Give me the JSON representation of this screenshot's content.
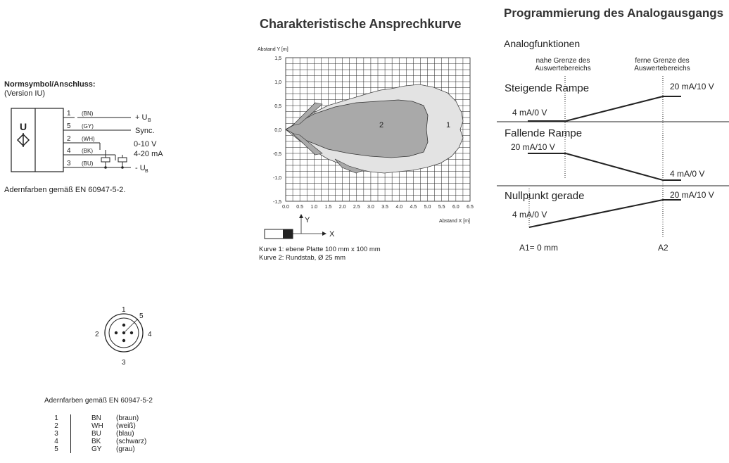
{
  "left": {
    "symbol_title": "Normsymbol/Anschluss:",
    "symbol_version": "(Version IU)",
    "symbol_letter": "U",
    "wires": [
      {
        "num": "1",
        "code": "(BN)",
        "signal": "+ U",
        "sub": "B"
      },
      {
        "num": "5",
        "code": "(GY)",
        "signal": "Sync.",
        "sub": ""
      },
      {
        "num": "2",
        "code": "(WH)",
        "signal": "0-10 V",
        "sub": ""
      },
      {
        "num": "4",
        "code": "(BK)",
        "signal": "4-20 mA",
        "sub": ""
      },
      {
        "num": "3",
        "code": "(BU)",
        "signal": "- U",
        "sub": "B"
      }
    ],
    "colors_note": "Adernfarben gemäß EN 60947-5-2.",
    "connector_pins": [
      "1",
      "5",
      "4",
      "3",
      "2"
    ],
    "pin_table_title": "Adernfarben gemäß EN 60947-5-2",
    "pin_table": [
      {
        "pin": "1",
        "code": "BN",
        "name": "(braun)"
      },
      {
        "pin": "2",
        "code": "WH",
        "name": "(weiß)"
      },
      {
        "pin": "3",
        "code": "BU",
        "name": "(blau)"
      },
      {
        "pin": "4",
        "code": "BK",
        "name": "(schwarz)"
      },
      {
        "pin": "5",
        "code": "GY",
        "name": "(grau)"
      }
    ]
  },
  "response": {
    "title": "Charakteristische Ansprechkurve",
    "y_label": "Abstand Y [m]",
    "x_label": "Abstand X [m]",
    "y_ticks": [
      "1,5",
      "1,0",
      "0,5",
      "0,0",
      "-0,5",
      "-1,0",
      "-1,5"
    ],
    "x_ticks": [
      "0.0",
      "0.5",
      "1.0",
      "1.5",
      "2.0",
      "2.5",
      "3.0",
      "3.5",
      "4.0",
      "4.5",
      "5.0",
      "5.5",
      "6.0",
      "6.5"
    ],
    "curve_labels": [
      "1",
      "2"
    ],
    "axis_y": "Y",
    "axis_x": "X",
    "legend": [
      "Kurve 1: ebene Platte 100 mm x 100 mm",
      "Kurve 2: Rundstab, Ø 25 mm"
    ]
  },
  "analog": {
    "title": "Programmierung des Analogausgangs",
    "subtitle": "Analogfunktionen",
    "near_limit": [
      "nahe Grenze des",
      "Auswertebereichs"
    ],
    "far_limit": [
      "ferne Grenze des",
      "Auswertebereichs"
    ],
    "rows": [
      {
        "name": "Steigende Rampe",
        "low": "4 mA/0 V",
        "high": "20 mA/10 V"
      },
      {
        "name": "Fallende Rampe",
        "low": "4 mA/0 V",
        "high": "20 mA/10 V"
      },
      {
        "name": "Nullpunkt gerade",
        "low": "4 mA/0 V",
        "high": "20 mA/10 V"
      }
    ],
    "a1": "A1= 0 mm",
    "a2": "A2"
  }
}
